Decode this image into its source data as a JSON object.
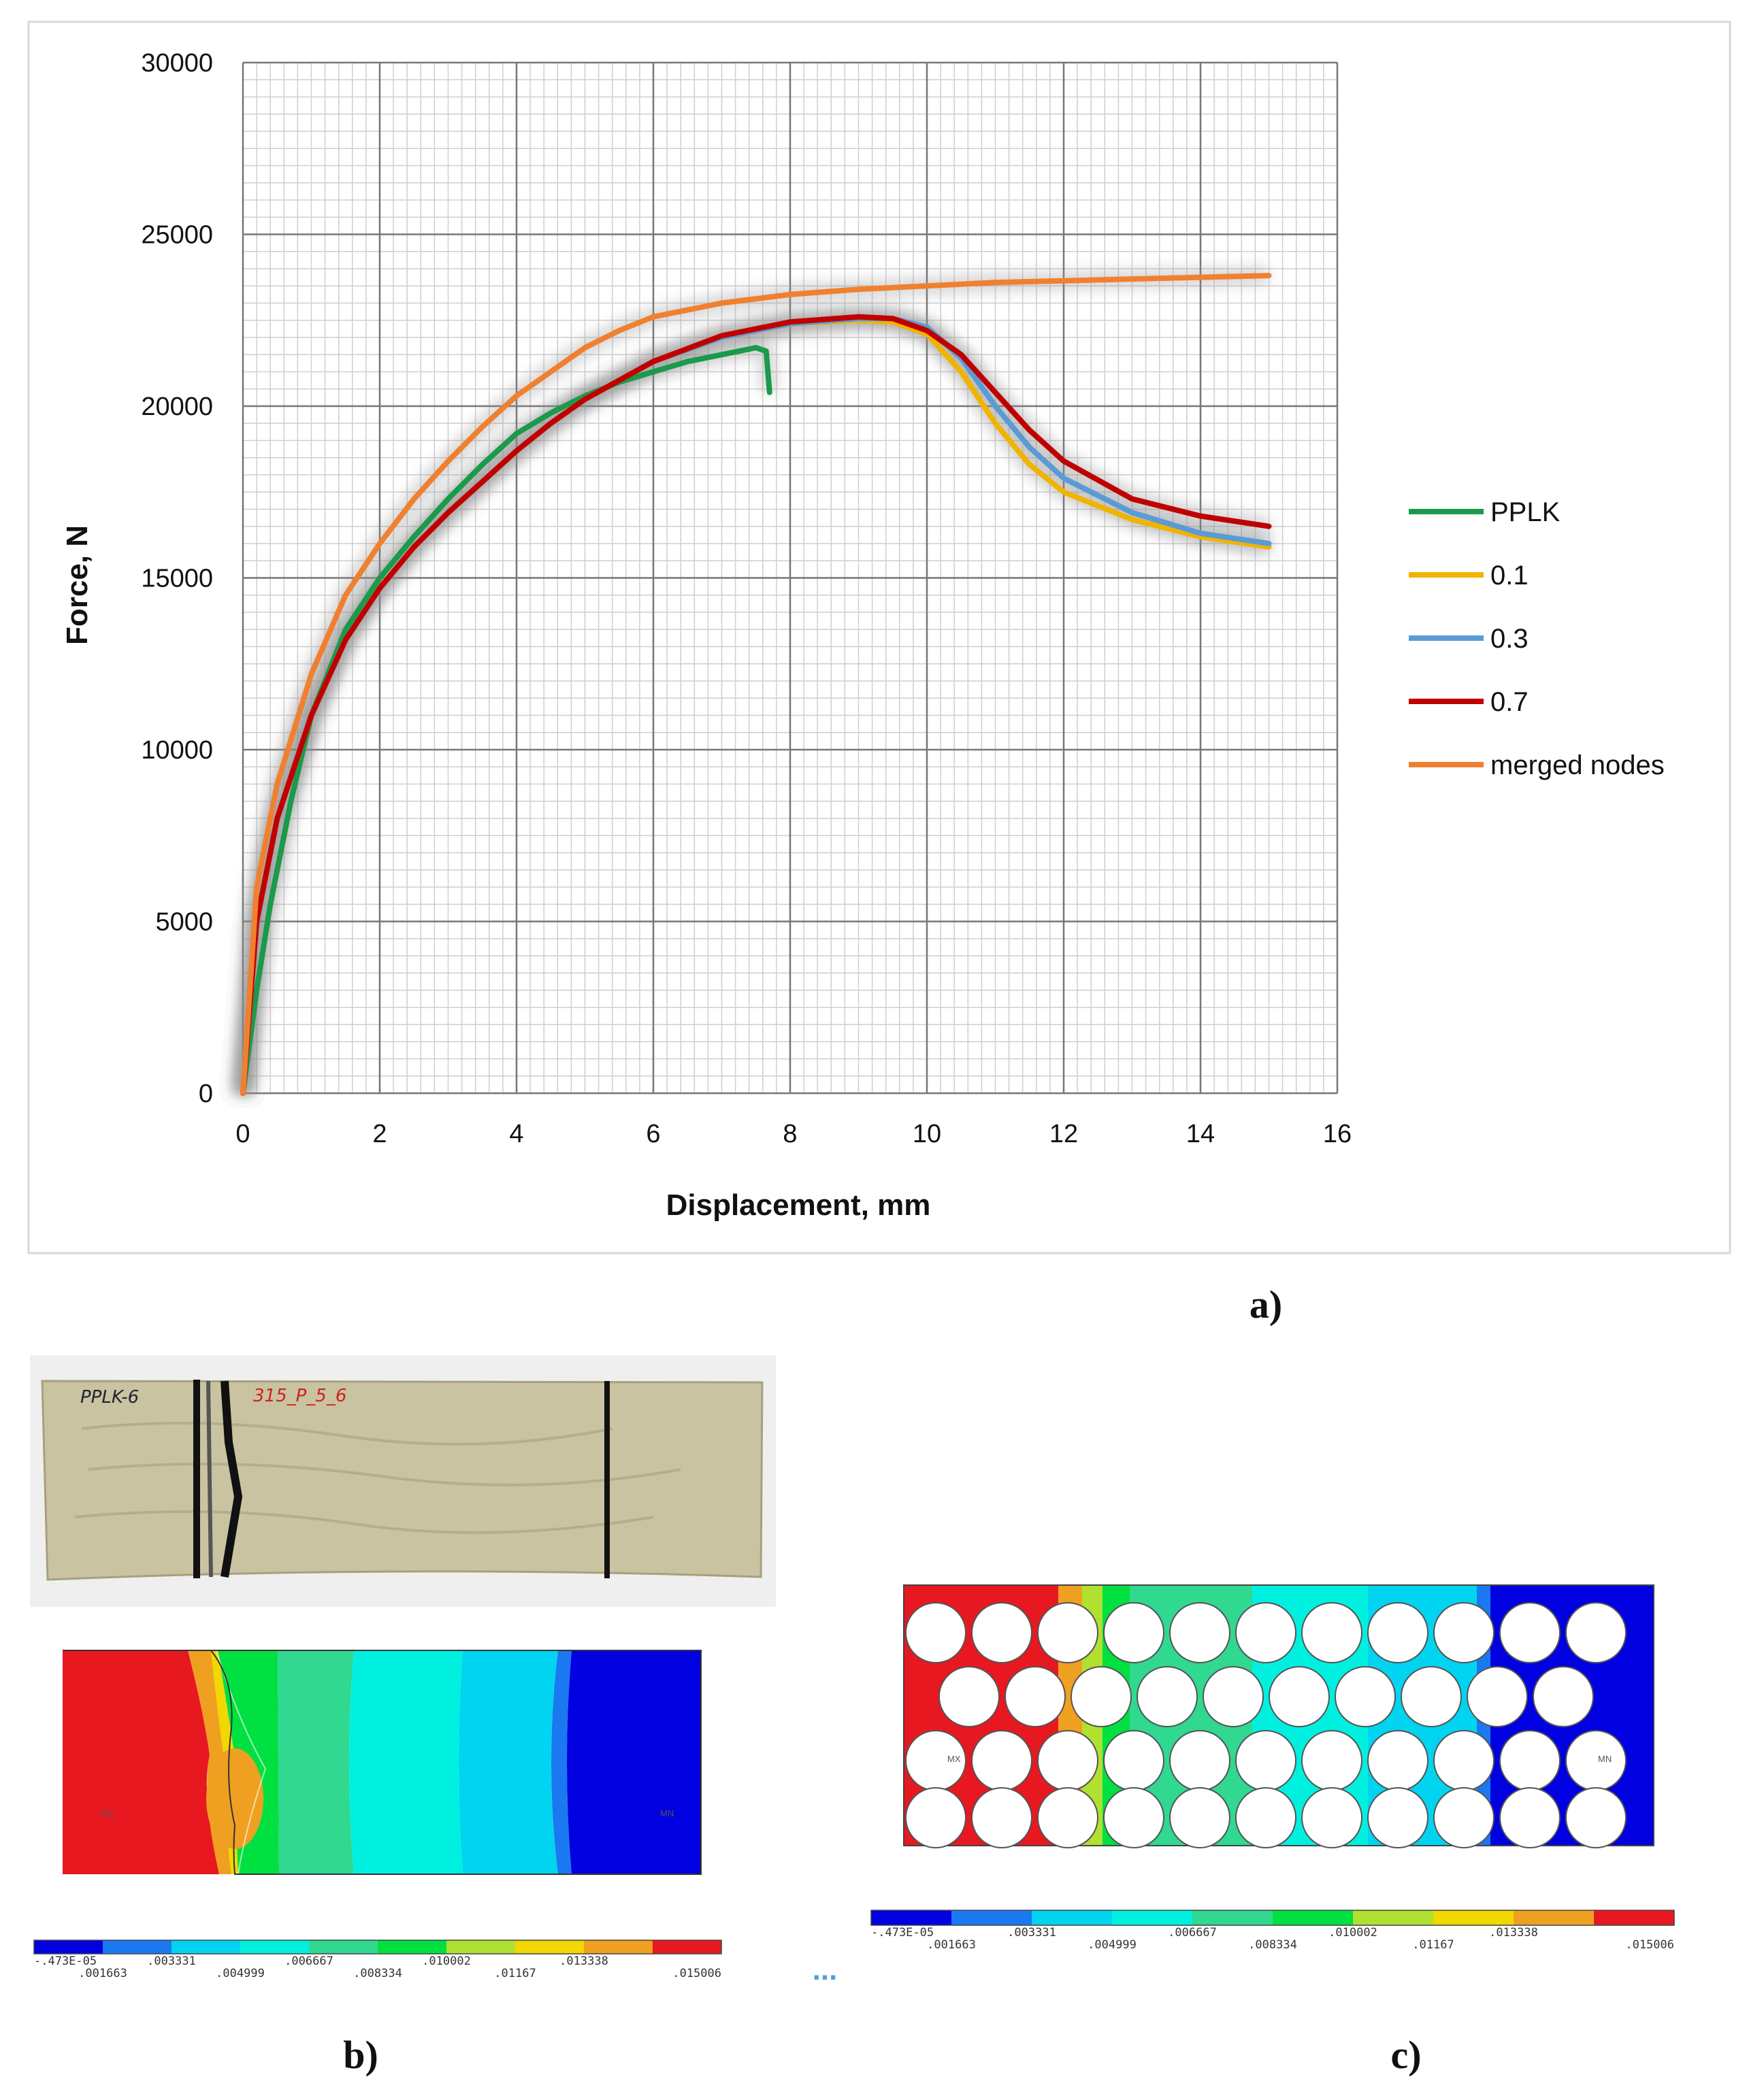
{
  "chart_data": {
    "type": "line",
    "xlabel": "Displacement, mm",
    "ylabel": "Force, N",
    "xlim": [
      0,
      16
    ],
    "ylim": [
      0,
      30000
    ],
    "x_ticks": [
      "0",
      "2",
      "4",
      "6",
      "8",
      "10",
      "12",
      "14",
      "16"
    ],
    "y_ticks": [
      "0",
      "5000",
      "10000",
      "15000",
      "20000",
      "25000",
      "30000"
    ],
    "grid": true,
    "legend_position": "right",
    "series": [
      {
        "name": "PPLK",
        "color": "#1a9a4a",
        "points": [
          [
            0,
            0
          ],
          [
            0.2,
            3000
          ],
          [
            0.4,
            5500
          ],
          [
            0.7,
            8500
          ],
          [
            1.0,
            11000
          ],
          [
            1.5,
            13500
          ],
          [
            2.0,
            15000
          ],
          [
            2.5,
            16200
          ],
          [
            3.0,
            17300
          ],
          [
            3.5,
            18300
          ],
          [
            4.0,
            19200
          ],
          [
            4.5,
            19800
          ],
          [
            5.0,
            20300
          ],
          [
            5.5,
            20700
          ],
          [
            6.0,
            21000
          ],
          [
            6.5,
            21300
          ],
          [
            7.0,
            21500
          ],
          [
            7.5,
            21700
          ],
          [
            7.65,
            21600
          ],
          [
            7.7,
            20400
          ]
        ]
      },
      {
        "name": "0.1",
        "color": "#f0b400",
        "points": [
          [
            0,
            0
          ],
          [
            0.2,
            5000
          ],
          [
            0.5,
            8000
          ],
          [
            1.0,
            11000
          ],
          [
            1.5,
            13200
          ],
          [
            2.0,
            14700
          ],
          [
            2.5,
            15900
          ],
          [
            3.0,
            16900
          ],
          [
            3.5,
            17800
          ],
          [
            4.0,
            18700
          ],
          [
            4.5,
            19500
          ],
          [
            5.0,
            20200
          ],
          [
            6.0,
            21300
          ],
          [
            7.0,
            22000
          ],
          [
            8.0,
            22400
          ],
          [
            9.0,
            22500
          ],
          [
            9.5,
            22450
          ],
          [
            10.0,
            22100
          ],
          [
            10.5,
            21000
          ],
          [
            11.0,
            19500
          ],
          [
            11.5,
            18300
          ],
          [
            12.0,
            17500
          ],
          [
            13.0,
            16700
          ],
          [
            14.0,
            16200
          ],
          [
            15.0,
            15900
          ]
        ]
      },
      {
        "name": "0.3",
        "color": "#5b9bd5",
        "points": [
          [
            0,
            0
          ],
          [
            0.2,
            5000
          ],
          [
            0.5,
            8000
          ],
          [
            1.0,
            11000
          ],
          [
            1.5,
            13200
          ],
          [
            2.0,
            14700
          ],
          [
            2.5,
            15900
          ],
          [
            3.0,
            16900
          ],
          [
            3.5,
            17800
          ],
          [
            4.0,
            18700
          ],
          [
            4.5,
            19500
          ],
          [
            5.0,
            20200
          ],
          [
            6.0,
            21300
          ],
          [
            7.0,
            22000
          ],
          [
            8.0,
            22400
          ],
          [
            9.0,
            22550
          ],
          [
            9.5,
            22550
          ],
          [
            10.0,
            22300
          ],
          [
            10.5,
            21400
          ],
          [
            11.0,
            20000
          ],
          [
            11.5,
            18800
          ],
          [
            12.0,
            17900
          ],
          [
            13.0,
            16900
          ],
          [
            14.0,
            16300
          ],
          [
            15.0,
            16000
          ]
        ]
      },
      {
        "name": "0.7",
        "color": "#c00000",
        "points": [
          [
            0,
            0
          ],
          [
            0.2,
            5000
          ],
          [
            0.5,
            8000
          ],
          [
            1.0,
            11000
          ],
          [
            1.5,
            13200
          ],
          [
            2.0,
            14700
          ],
          [
            2.5,
            15900
          ],
          [
            3.0,
            16900
          ],
          [
            3.5,
            17800
          ],
          [
            4.0,
            18700
          ],
          [
            4.5,
            19500
          ],
          [
            5.0,
            20200
          ],
          [
            6.0,
            21300
          ],
          [
            7.0,
            22050
          ],
          [
            8.0,
            22450
          ],
          [
            9.0,
            22600
          ],
          [
            9.5,
            22550
          ],
          [
            10.0,
            22200
          ],
          [
            10.5,
            21500
          ],
          [
            11.0,
            20400
          ],
          [
            11.5,
            19300
          ],
          [
            12.0,
            18400
          ],
          [
            13.0,
            17300
          ],
          [
            14.0,
            16800
          ],
          [
            15.0,
            16500
          ]
        ]
      },
      {
        "name": "merged nodes",
        "color": "#f08030",
        "points": [
          [
            0,
            0
          ],
          [
            0.2,
            6000
          ],
          [
            0.5,
            9000
          ],
          [
            1.0,
            12200
          ],
          [
            1.5,
            14500
          ],
          [
            2.0,
            16000
          ],
          [
            2.5,
            17300
          ],
          [
            3.0,
            18400
          ],
          [
            3.5,
            19400
          ],
          [
            4.0,
            20300
          ],
          [
            4.5,
            21000
          ],
          [
            5.0,
            21700
          ],
          [
            5.5,
            22200
          ],
          [
            6.0,
            22600
          ],
          [
            7.0,
            23000
          ],
          [
            8.0,
            23250
          ],
          [
            9.0,
            23400
          ],
          [
            10.0,
            23500
          ],
          [
            11.0,
            23600
          ],
          [
            12.0,
            23650
          ],
          [
            13.0,
            23700
          ],
          [
            14.0,
            23750
          ],
          [
            15.0,
            23800
          ]
        ]
      }
    ]
  },
  "panels": {
    "a": "a)",
    "b": "b)",
    "c": "c)"
  },
  "photo": {
    "label_left": "PPLK-6",
    "label_red": "315_P_5_6"
  },
  "contour": {
    "colors": [
      "#0000e0",
      "#1a78f0",
      "#00d4f0",
      "#00f0e0",
      "#30d890",
      "#00e040",
      "#b0e030",
      "#f0d800",
      "#f0a020",
      "#e81820"
    ],
    "labels_top": [
      "-.473E-05",
      ".003331",
      ".006667",
      ".010002",
      ".013338"
    ],
    "labels_bottom": [
      ".001663",
      ".004999",
      ".008334",
      ".01167",
      ".015006"
    ],
    "mx_label": "MX",
    "mn_label": "MN"
  },
  "ellipsis": "..."
}
